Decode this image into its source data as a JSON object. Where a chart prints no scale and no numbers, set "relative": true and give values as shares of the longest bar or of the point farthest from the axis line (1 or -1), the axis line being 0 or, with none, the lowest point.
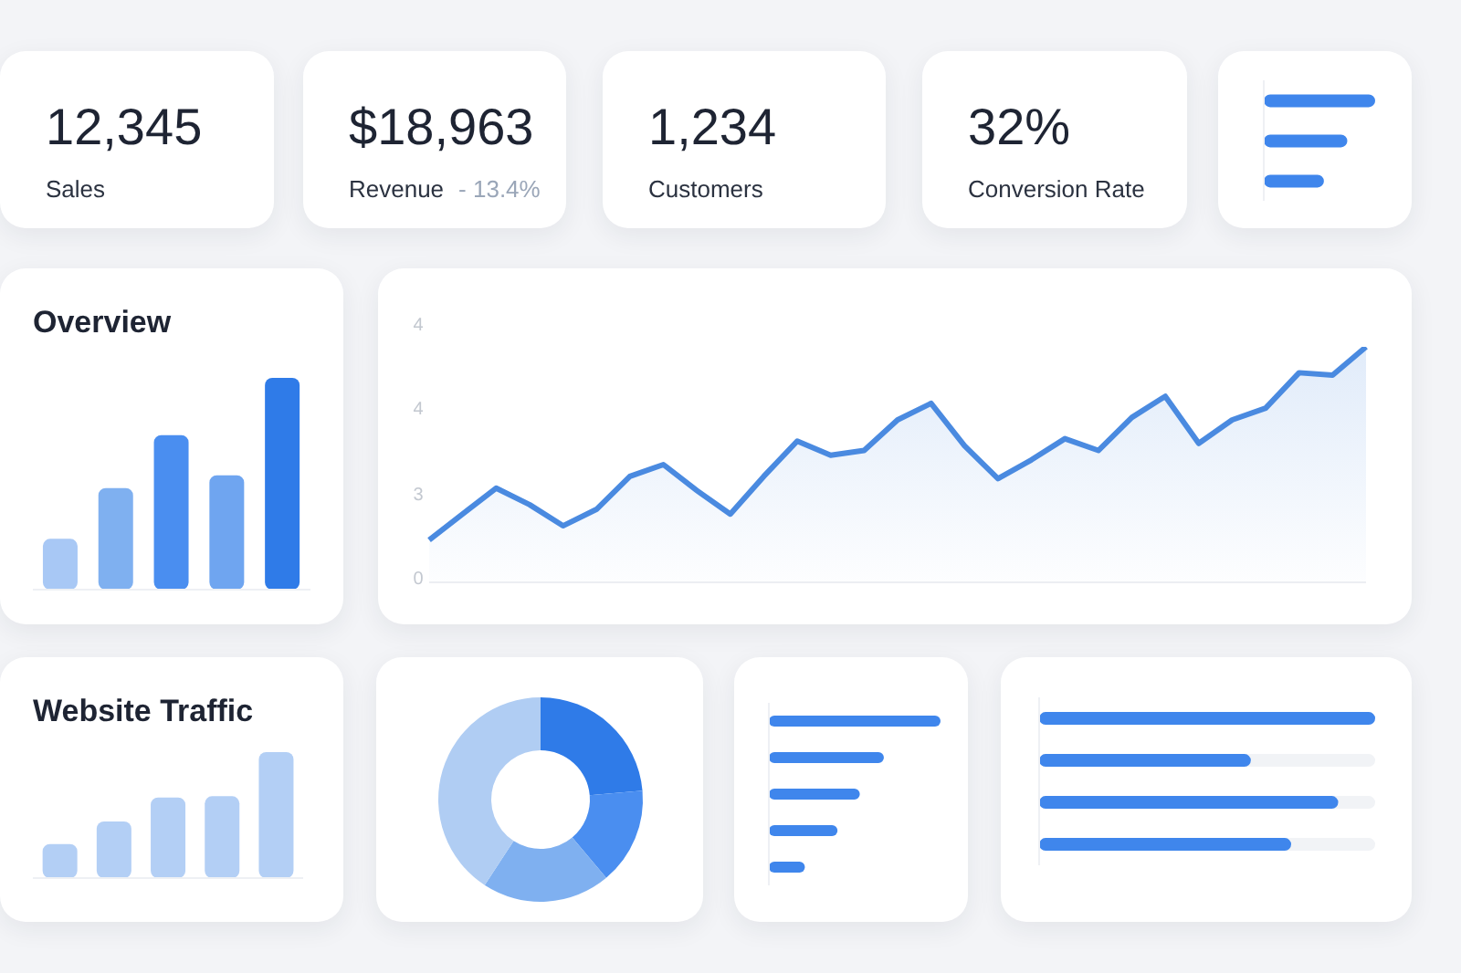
{
  "chart_data": [
    {
      "type": "other",
      "title": "12,345",
      "subtitle": "Sales"
    },
    {
      "type": "other",
      "title": "$18,963",
      "subtitle": "Revenue",
      "annotations": [
        "- 13.4%"
      ]
    },
    {
      "type": "other",
      "title": "1,234",
      "subtitle": "Customers"
    },
    {
      "type": "other",
      "title": "32%",
      "subtitle": "Conversion Rate"
    },
    {
      "type": "bar",
      "orientation": "horizontal",
      "relative": true,
      "categories": [
        null,
        null,
        null
      ],
      "values": [
        1,
        0.75,
        0.54
      ],
      "color": "#3f86ec"
    },
    {
      "type": "bar",
      "title": "Overview",
      "relative": true,
      "categories": [
        null,
        null,
        null,
        null,
        null
      ],
      "values": [
        0.24,
        0.48,
        0.73,
        0.54,
        1
      ],
      "colors": [
        "#a8c8f5",
        "#7fb0f0",
        "#4a8ef0",
        "#6fa5f0",
        "#2f7be8"
      ]
    },
    {
      "type": "area",
      "categories": [
        null,
        null,
        null,
        null,
        null,
        null,
        null,
        null,
        null,
        null,
        null,
        null,
        null,
        null,
        null,
        null,
        null,
        null,
        null,
        null,
        null,
        null,
        null,
        null,
        null,
        null,
        null,
        null,
        null
      ],
      "values": [
        0.18,
        0.29,
        0.4,
        0.33,
        0.24,
        0.31,
        0.45,
        0.5,
        0.39,
        0.29,
        0.45,
        0.6,
        0.54,
        0.56,
        0.69,
        0.76,
        0.58,
        0.44,
        0.52,
        0.61,
        0.56,
        0.7,
        0.79,
        0.59,
        0.69,
        0.74,
        0.89,
        0.88,
        1
      ],
      "color": "#4a8ae0",
      "relative": true,
      "annotations": [
        "4",
        "4",
        "3",
        "0"
      ]
    },
    {
      "type": "bar",
      "title": "Website Traffic",
      "relative": true,
      "categories": [
        null,
        null,
        null,
        null,
        null
      ],
      "values": [
        0.27,
        0.45,
        0.64,
        0.65,
        1
      ],
      "color": "#b3cff5"
    },
    {
      "type": "donut",
      "categories": [
        null,
        null,
        null,
        null
      ],
      "values": [
        23.6,
        15.3,
        20.3,
        40.8
      ],
      "colors": [
        "#2f7be8",
        "#4a8ef0",
        "#7fb0f0",
        "#b0cdf3"
      ]
    },
    {
      "type": "bar",
      "orientation": "horizontal",
      "relative": true,
      "categories": [
        null,
        null,
        null,
        null,
        null
      ],
      "values": [
        1,
        0.67,
        0.53,
        0.4,
        0.21
      ],
      "color": "#3f86ec"
    },
    {
      "type": "bar",
      "orientation": "horizontal",
      "relative": true,
      "categories": [
        null,
        null,
        null,
        null
      ],
      "values": [
        1,
        0.63,
        0.89,
        0.75
      ],
      "color": "#3f86ec"
    }
  ]
}
